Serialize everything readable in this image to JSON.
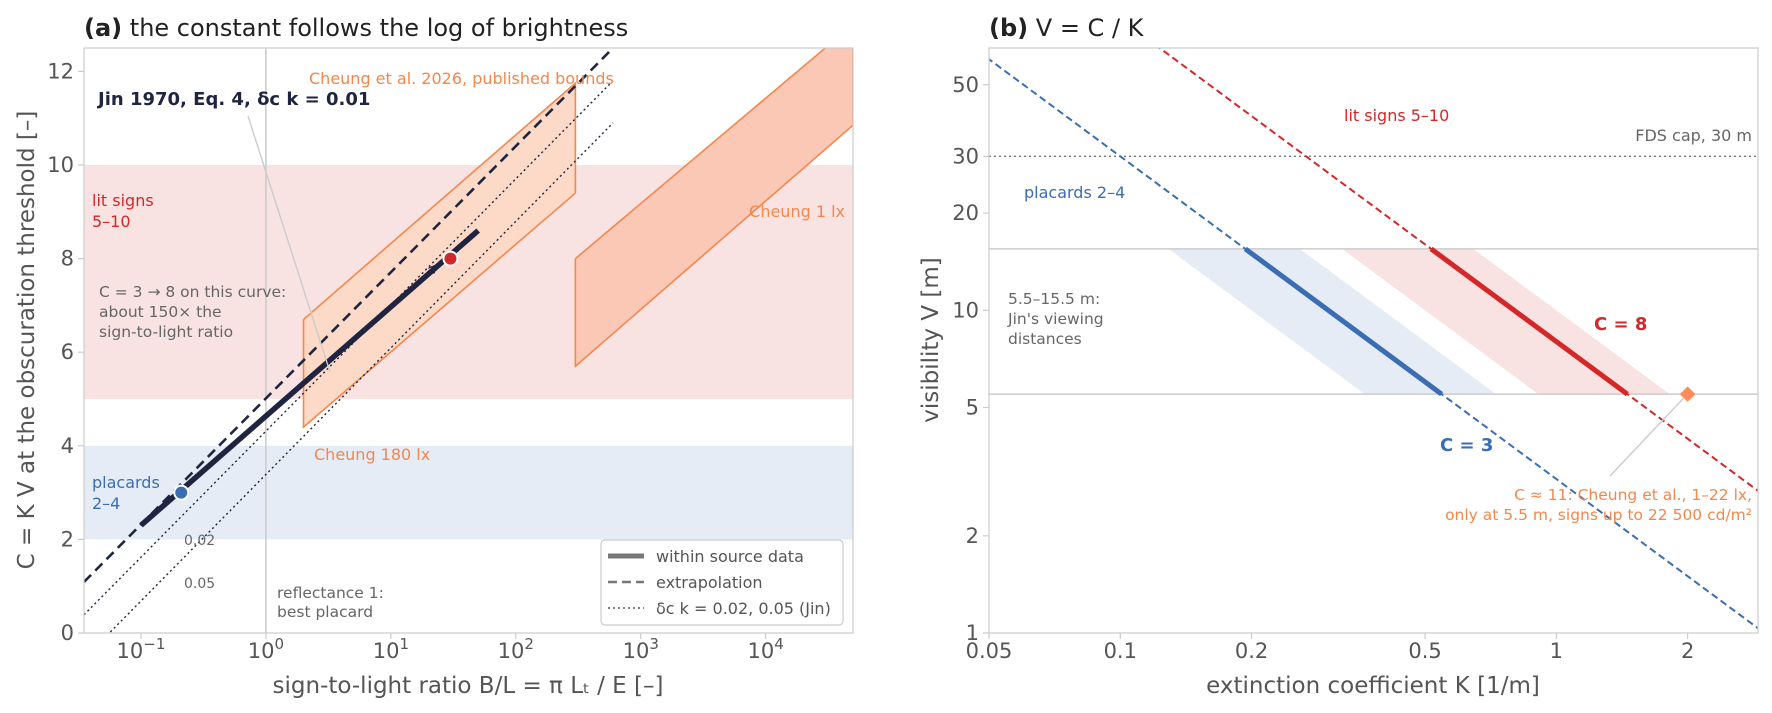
{
  "chart_data": [
    {
      "type": "line",
      "panel_tag": "(a)",
      "title": "the constant follows the log of brightness",
      "xlabel": "sign-to-light ratio  B/L = π Lₜ / E  [–]",
      "ylabel": "C = K V at the obscuration threshold [–]",
      "x_scale": "log",
      "xlim": [
        0.035,
        50000
      ],
      "ylim": [
        0,
        12.5
      ],
      "x_ticks": [
        {
          "value": 0.1,
          "base": "10",
          "exp": "−1"
        },
        {
          "value": 1,
          "base": "10",
          "exp": "0"
        },
        {
          "value": 10,
          "base": "10",
          "exp": "1"
        },
        {
          "value": 100,
          "base": "10",
          "exp": "2"
        },
        {
          "value": 1000,
          "base": "10",
          "exp": "3"
        },
        {
          "value": 10000,
          "base": "10",
          "exp": "4"
        }
      ],
      "y_ticks": [
        0,
        2,
        4,
        6,
        8,
        10,
        12
      ],
      "grid": false,
      "bands": [
        {
          "name": "lit signs\n5–10",
          "y": [
            5,
            10
          ],
          "color": "#f9e2e2",
          "label_color": "#d62728"
        },
        {
          "name": "placards\n2–4",
          "y": [
            2,
            4
          ],
          "color": "#e5ecf6",
          "label_color": "#3b6db3"
        }
      ],
      "series": [
        {
          "name": "Jin 1970, Eq. 4, δc k = 0.01",
          "style": "within source data",
          "color": "#1f2540",
          "x": [
            0.1,
            50
          ],
          "y": [
            2.3,
            8.6
          ]
        },
        {
          "style": "extrapolation",
          "color": "#1f2540",
          "x": [
            0.035,
            600
          ],
          "y": [
            1.09,
            12.5
          ]
        },
        {
          "name": "δc k = 0.02, 0.05 (Jin)",
          "style": "dotted",
          "color": "#1f2540",
          "labels": [
            "0.02",
            "0.05"
          ],
          "lines": [
            {
              "x": [
                0.035,
                600
              ],
              "y": [
                0.39,
                11.8
              ]
            },
            {
              "x": [
                0.05,
                600
              ],
              "y": [
                -0.13,
                10.9
              ]
            }
          ]
        }
      ],
      "points": [
        {
          "x": 0.21,
          "y": 3.0,
          "color": "#3b6db3"
        },
        {
          "x": 30,
          "y": 8.0,
          "color": "#d62728"
        }
      ],
      "cheung_bounds": {
        "label": "Cheung et al. 2026, published bounds",
        "color": "#f4874b",
        "regions": [
          {
            "label": "Cheung 180 lx",
            "x": [
              2,
              300
            ],
            "y_low_start": 4.4,
            "y_low_end": 9.4,
            "y_high_start": 6.7,
            "y_high_end": 11.75
          },
          {
            "label": "Cheung 1 lx",
            "x": [
              300,
              50000
            ],
            "y_low_start": 5.7,
            "y_low_end": 10.85,
            "y_high_start": 8.0,
            "y_high_end": 13.0
          }
        ]
      },
      "reference_line": {
        "x": 1,
        "label": "reflectance 1:\nbest placard"
      },
      "annotations": [
        {
          "text": "C = 3 → 8 on this curve:\nabout 150× the\nsign-to-light ratio"
        }
      ],
      "legend": {
        "position": "lower-right",
        "entries": [
          {
            "label": "within source data",
            "style": "solid-thick"
          },
          {
            "label": "extrapolation",
            "style": "dashed"
          },
          {
            "label": "δc k = 0.02, 0.05 (Jin)",
            "style": "dotted"
          }
        ]
      }
    },
    {
      "type": "line",
      "panel_tag": "(b)",
      "title": "V = C / K",
      "xlabel": "extinction coefficient K [1/m]",
      "ylabel": "visibility V [m]",
      "x_scale": "log",
      "y_scale": "log",
      "xlim": [
        0.05,
        2.9
      ],
      "ylim": [
        1,
        65
      ],
      "x_ticks": [
        {
          "value": 0.05,
          "label": "0.05"
        },
        {
          "value": 0.1,
          "label": "0.1"
        },
        {
          "value": 0.2,
          "label": "0.2"
        },
        {
          "value": 0.5,
          "label": "0.5"
        },
        {
          "value": 1,
          "label": "1"
        },
        {
          "value": 2,
          "label": "2"
        }
      ],
      "y_ticks": [
        {
          "value": 1,
          "label": "1"
        },
        {
          "value": 2,
          "label": "2"
        },
        {
          "value": 5,
          "label": "5"
        },
        {
          "value": 10,
          "label": "10"
        },
        {
          "value": 20,
          "label": "20"
        },
        {
          "value": 30,
          "label": "30"
        },
        {
          "value": 50,
          "label": "50"
        }
      ],
      "grid": false,
      "reference_lines": [
        {
          "y": 30,
          "label": "FDS cap, 30 m",
          "style": "dotted"
        },
        {
          "y": 5.5,
          "style": "solid-light"
        },
        {
          "y": 15.5,
          "style": "solid-light"
        }
      ],
      "series": [
        {
          "name": "C = 3",
          "C": 3,
          "color": "#3b6db3",
          "band_color": "#e5ecf6",
          "band_C": [
            2,
            4
          ],
          "band_label": "placards 2–4",
          "solid_between_m": [
            5.5,
            15.5
          ]
        },
        {
          "name": "C = 8",
          "C": 8,
          "color": "#d62728",
          "band_color": "#f9e2e2",
          "band_C": [
            5,
            10
          ],
          "band_label": "lit signs 5–10",
          "solid_between_m": [
            5.5,
            15.5
          ]
        }
      ],
      "points": [
        {
          "x": 2.0,
          "y": 5.5,
          "color": "#ff8c5a"
        }
      ],
      "annotations": [
        {
          "text": "5.5–15.5 m:\nJin's viewing\ndistances"
        },
        {
          "text": "C ≈ 11: Cheung et al., 1–22 lx,\nonly at 5.5 m, signs up to 22 500 cd/m²",
          "color": "#f4874b"
        }
      ]
    }
  ]
}
